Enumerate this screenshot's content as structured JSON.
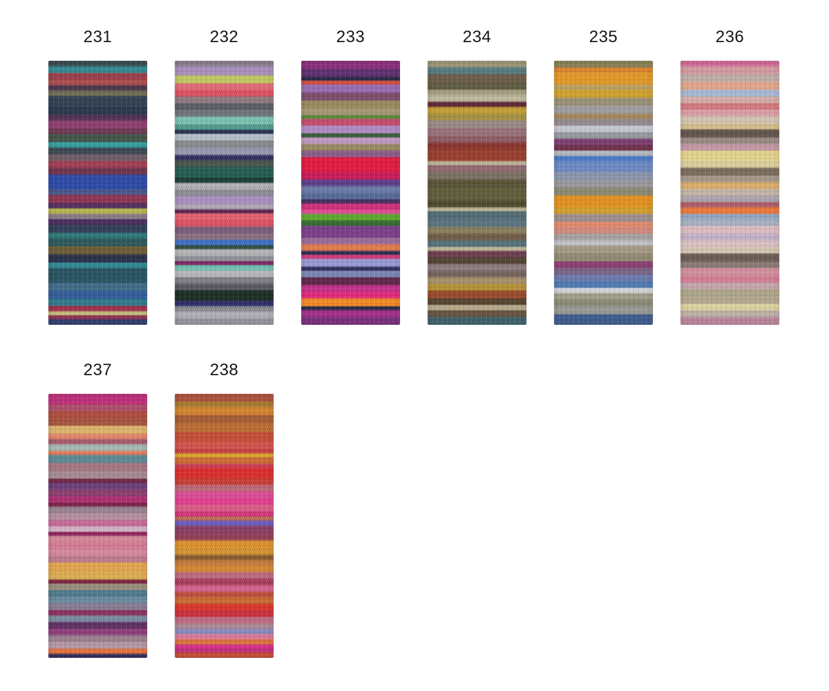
{
  "page": {
    "background": "#ffffff",
    "description_labels": []
  },
  "swatches": [
    {
      "number": "231",
      "stripes": [
        [
          "#35474e",
          2
        ],
        [
          "#2e8a92",
          2.5
        ],
        [
          "#9c3a46",
          2.5
        ],
        [
          "#ae4a4a",
          2
        ],
        [
          "#4a3148",
          2
        ],
        [
          "#6b6b52",
          2
        ],
        [
          "#2c3c50",
          4
        ],
        [
          "#26324a",
          3
        ],
        [
          "#4f2c50",
          2
        ],
        [
          "#8e3a6e",
          3
        ],
        [
          "#6e3350",
          2
        ],
        [
          "#3f4f46",
          3
        ],
        [
          "#2fa0a0",
          2
        ],
        [
          "#35454f",
          2.5
        ],
        [
          "#6d5a64",
          2.5
        ],
        [
          "#a23a50",
          2.5
        ],
        [
          "#6e2e48",
          2.5
        ],
        [
          "#2846a8",
          5.5
        ],
        [
          "#44548a",
          2
        ],
        [
          "#8e3050",
          3
        ],
        [
          "#502a5a",
          2
        ],
        [
          "#b8b84a",
          2
        ],
        [
          "#8a7a8a",
          2
        ],
        [
          "#46275a",
          2
        ],
        [
          "#2c3a55",
          3
        ],
        [
          "#2a7878",
          2
        ],
        [
          "#27565a",
          3
        ],
        [
          "#6b5a32",
          3
        ],
        [
          "#232c46",
          3
        ],
        [
          "#2a8a96",
          2
        ],
        [
          "#23505f",
          5.5
        ],
        [
          "#3c6a8a",
          3
        ],
        [
          "#2c5a9a",
          3
        ],
        [
          "#2a7a8a",
          2.5
        ],
        [
          "#a02a46",
          2
        ],
        [
          "#c8c078",
          1.5
        ],
        [
          "#8a2a50",
          1.5
        ],
        [
          "#2a3a6e",
          2
        ]
      ]
    },
    {
      "number": "232",
      "stripes": [
        [
          "#8a7f8a",
          2
        ],
        [
          "#a98fc0",
          3.5
        ],
        [
          "#c3cc5e",
          3
        ],
        [
          "#e86878",
          2.5
        ],
        [
          "#e14e5e",
          2.5
        ],
        [
          "#8d7a80",
          2.5
        ],
        [
          "#5a5a62",
          2.5
        ],
        [
          "#6e7478",
          2.5
        ],
        [
          "#7cc4b4",
          3
        ],
        [
          "#4e9a8e",
          2
        ],
        [
          "#1e2a4a",
          1.5
        ],
        [
          "#b8c2cc",
          2.5
        ],
        [
          "#8a8a92",
          3
        ],
        [
          "#9a9ab4",
          2.5
        ],
        [
          "#2e2a5e",
          2
        ],
        [
          "#42524a",
          2.5
        ],
        [
          "#1e5a50",
          4
        ],
        [
          "#14382e",
          2
        ],
        [
          "#b4b4b8",
          2.5
        ],
        [
          "#8e8e96",
          2.5
        ],
        [
          "#ab8fc4",
          3
        ],
        [
          "#b0aab8",
          2
        ],
        [
          "#5a2050",
          1.5
        ],
        [
          "#e8606e",
          2.5
        ],
        [
          "#e14e62",
          2.5
        ],
        [
          "#7a5a7a",
          2.5
        ],
        [
          "#8a6e82",
          2.5
        ],
        [
          "#3a6ec8",
          2
        ],
        [
          "#2a4a3a",
          1.5
        ],
        [
          "#b8b8bc",
          2.5
        ],
        [
          "#92929a",
          2
        ],
        [
          "#7a2060",
          1.5
        ],
        [
          "#6ec4b0",
          2
        ],
        [
          "#bcbcc0",
          2.5
        ],
        [
          "#7e7e86",
          2.5
        ],
        [
          "#565660",
          2.5
        ],
        [
          "#15291e",
          4
        ],
        [
          "#2a2a6a",
          2
        ],
        [
          "#8a8a92",
          2
        ],
        [
          "#b2b2ba",
          2.5
        ],
        [
          "#9a96a0",
          2.5
        ]
      ]
    },
    {
      "number": "233",
      "stripes": [
        [
          "#8e2a7a",
          3
        ],
        [
          "#5e2a6e",
          3
        ],
        [
          "#232344",
          1.5
        ],
        [
          "#d84a3a",
          1.5
        ],
        [
          "#9a6ab4",
          3
        ],
        [
          "#7a4a6a",
          3
        ],
        [
          "#9a8a5a",
          3
        ],
        [
          "#a89a72",
          2.5
        ],
        [
          "#5a8a3a",
          1.5
        ],
        [
          "#c84a6a",
          2.5
        ],
        [
          "#b48ac8",
          3
        ],
        [
          "#2e5a2e",
          1.5
        ],
        [
          "#c49ac8",
          2.5
        ],
        [
          "#9a8a62",
          2.5
        ],
        [
          "#8a5a8a",
          2.5
        ],
        [
          "#e8143c",
          5.5
        ],
        [
          "#ce1458",
          3
        ],
        [
          "#5a3a8a",
          2.5
        ],
        [
          "#6a7aaa",
          2.5
        ],
        [
          "#54689a",
          2.5
        ],
        [
          "#3a2a5a",
          1.5
        ],
        [
          "#d42a7a",
          2.5
        ],
        [
          "#e84a9a",
          1.5
        ],
        [
          "#5aaa2a",
          2.5
        ],
        [
          "#2e6a2a",
          2
        ],
        [
          "#7a3a8a",
          4.5
        ],
        [
          "#9a6a9a",
          2.5
        ],
        [
          "#e87a4a",
          2.5
        ],
        [
          "#28284e",
          1.5
        ],
        [
          "#d8347a",
          1.5
        ],
        [
          "#9a9ad8",
          3
        ],
        [
          "#28285a",
          1.5
        ],
        [
          "#7a86b8",
          2.5
        ],
        [
          "#5e2048",
          3
        ],
        [
          "#c82a8a",
          2.5
        ],
        [
          "#e8247a",
          2.5
        ],
        [
          "#f88a1e",
          3
        ],
        [
          "#232348",
          1.5
        ],
        [
          "#a62a8a",
          2.5
        ],
        [
          "#7a2a7a",
          3
        ]
      ]
    },
    {
      "number": "234",
      "stripes": [
        [
          "#a09878",
          2.5
        ],
        [
          "#527a80",
          2.5
        ],
        [
          "#6a5a46",
          3
        ],
        [
          "#5e5a3e",
          3
        ],
        [
          "#a8a080",
          2
        ],
        [
          "#c2bca0",
          2.5
        ],
        [
          "#5e2430",
          2
        ],
        [
          "#c8a030",
          2.5
        ],
        [
          "#a8923e",
          2.5
        ],
        [
          "#9a8a86",
          3
        ],
        [
          "#9a7078",
          3
        ],
        [
          "#8e5a62",
          2.5
        ],
        [
          "#8a3028",
          2.5
        ],
        [
          "#9a3a28",
          4.5
        ],
        [
          "#c2b89a",
          1.5
        ],
        [
          "#92686e",
          2.5
        ],
        [
          "#7a6e62",
          3
        ],
        [
          "#565032",
          3
        ],
        [
          "#5e5a36",
          5
        ],
        [
          "#4a4628",
          2.5
        ],
        [
          "#beb696",
          1.5
        ],
        [
          "#4e6a72",
          3
        ],
        [
          "#5a7280",
          3
        ],
        [
          "#8a7e5a",
          2.5
        ],
        [
          "#6e5a44",
          2.5
        ],
        [
          "#52707a",
          2.5
        ],
        [
          "#c2ba9c",
          1.5
        ],
        [
          "#6a3a4a",
          2.5
        ],
        [
          "#50402e",
          2.5
        ],
        [
          "#8e7a7e",
          2.5
        ],
        [
          "#74625a",
          2.5
        ],
        [
          "#a8906a",
          2.5
        ],
        [
          "#b89232",
          2.5
        ],
        [
          "#9a4626",
          3
        ],
        [
          "#53402a",
          2.5
        ],
        [
          "#bcae8e",
          2
        ],
        [
          "#64503c",
          2.5
        ],
        [
          "#3a606a",
          3
        ]
      ]
    },
    {
      "number": "235",
      "stripes": [
        [
          "#8a8252",
          2.5
        ],
        [
          "#e08428",
          2
        ],
        [
          "#e89a22",
          4.5
        ],
        [
          "#c0a25a",
          2
        ],
        [
          "#d4a428",
          3
        ],
        [
          "#9a9276",
          3
        ],
        [
          "#a0a0a0",
          3
        ],
        [
          "#a8865a",
          2
        ],
        [
          "#968a8e",
          2.5
        ],
        [
          "#c8ccd4",
          2.5
        ],
        [
          "#9a9aa2",
          2.5
        ],
        [
          "#7a3a6e",
          2.5
        ],
        [
          "#6e2a46",
          2
        ],
        [
          "#b8bcc4",
          2
        ],
        [
          "#4a7ac8",
          2
        ],
        [
          "#6a8ac8",
          4
        ],
        [
          "#8a96b0",
          3
        ],
        [
          "#9a9a9e",
          3
        ],
        [
          "#8a8a72",
          3
        ],
        [
          "#e8921a",
          4.5
        ],
        [
          "#d8a028",
          2.5
        ],
        [
          "#a09090",
          3
        ],
        [
          "#e88a6a",
          2
        ],
        [
          "#d88a7e",
          2.5
        ],
        [
          "#a8a4a4",
          2.5
        ],
        [
          "#c4c6cc",
          2
        ],
        [
          "#a89a86",
          3
        ],
        [
          "#928a72",
          3
        ],
        [
          "#8a3a72",
          2.5
        ],
        [
          "#7a6286",
          2.5
        ],
        [
          "#6a7ab0",
          2.5
        ],
        [
          "#4a7ab4",
          2.5
        ],
        [
          "#d8dade",
          2
        ],
        [
          "#a0a08a",
          2.5
        ],
        [
          "#8a8a76",
          2.5
        ],
        [
          "#9a9a96",
          3
        ],
        [
          "#3a5a8e",
          4
        ]
      ]
    },
    {
      "number": "236",
      "stripes": [
        [
          "#d86a9a",
          2
        ],
        [
          "#d89aa2",
          3
        ],
        [
          "#c2b0a8",
          3
        ],
        [
          "#e8a88e",
          3
        ],
        [
          "#a8bcd8",
          2.5
        ],
        [
          "#d8b0ac",
          2.5
        ],
        [
          "#d87a7e",
          2.5
        ],
        [
          "#e0a0a8",
          2.5
        ],
        [
          "#d8c8b4",
          3
        ],
        [
          "#d8c08a",
          2
        ],
        [
          "#5e5248",
          3
        ],
        [
          "#9a8a82",
          2.5
        ],
        [
          "#c89aa8",
          2.5
        ],
        [
          "#e8d88e",
          4
        ],
        [
          "#e0d4a0",
          2.5
        ],
        [
          "#7a6a5a",
          3
        ],
        [
          "#a8988a",
          2.5
        ],
        [
          "#e0b06a",
          2.5
        ],
        [
          "#c8b8a8",
          2.5
        ],
        [
          "#b0a8b0",
          2.5
        ],
        [
          "#b05a6a",
          2
        ],
        [
          "#f07838",
          2.5
        ],
        [
          "#92a8c4",
          2
        ],
        [
          "#a8b4c4",
          2.5
        ],
        [
          "#e0c0c4",
          3
        ],
        [
          "#c8b4cc",
          2.5
        ],
        [
          "#e0c4c8",
          2.5
        ],
        [
          "#d8cab4",
          2.5
        ],
        [
          "#685a50",
          3
        ],
        [
          "#8a7a72",
          2.5
        ],
        [
          "#d890a0",
          3
        ],
        [
          "#d87e96",
          2.5
        ],
        [
          "#c8a8b0",
          2.5
        ],
        [
          "#b0a88a",
          3
        ],
        [
          "#b8a890",
          2.5
        ],
        [
          "#e0d8a0",
          2.5
        ],
        [
          "#c0b4a8",
          2.5
        ],
        [
          "#c088a0",
          3
        ]
      ]
    },
    {
      "number": "237",
      "stripes": [
        [
          "#c22a7a",
          4
        ],
        [
          "#b04a6a",
          2.5
        ],
        [
          "#b04a3a",
          2.5
        ],
        [
          "#a8503a",
          3
        ],
        [
          "#e0b86a",
          3
        ],
        [
          "#e8866a",
          2
        ],
        [
          "#a85a6a",
          2
        ],
        [
          "#a8bcb4",
          2.5
        ],
        [
          "#e87a5a",
          1.5
        ],
        [
          "#5a8a96",
          3
        ],
        [
          "#a87482",
          3
        ],
        [
          "#a88a92",
          3
        ],
        [
          "#6e1e3e",
          1.5
        ],
        [
          "#6a3a7a",
          2.5
        ],
        [
          "#8a3a6e",
          2.5
        ],
        [
          "#b02a72",
          2.5
        ],
        [
          "#781e46",
          1.5
        ],
        [
          "#9a8290",
          2.5
        ],
        [
          "#b890a0",
          2.5
        ],
        [
          "#c86a9a",
          2.5
        ],
        [
          "#d8b8c8",
          2
        ],
        [
          "#8e1e5a",
          1.5
        ],
        [
          "#d8889a",
          2.5
        ],
        [
          "#d87a96",
          2.5
        ],
        [
          "#d88aa0",
          2.5
        ],
        [
          "#c27a90",
          2.5
        ],
        [
          "#e8a84a",
          4
        ],
        [
          "#e0b050",
          2.5
        ],
        [
          "#7a1e3a",
          1.5
        ],
        [
          "#9a8e7a",
          2.5
        ],
        [
          "#4a7a8e",
          2.5
        ],
        [
          "#6a8aa0",
          2.5
        ],
        [
          "#8a7a92",
          2.5
        ],
        [
          "#8a2a5a",
          2
        ],
        [
          "#7a8aa0",
          2.5
        ],
        [
          "#5e2a62",
          2.5
        ],
        [
          "#8e3a7a",
          2.5
        ],
        [
          "#9a8090",
          2.5
        ],
        [
          "#b898a8",
          2.5
        ],
        [
          "#e8703a",
          2
        ],
        [
          "#2a2a5a",
          1.5
        ]
      ]
    },
    {
      "number": "238",
      "stripes": [
        [
          "#b05038",
          3
        ],
        [
          "#a87a2a",
          2
        ],
        [
          "#d8842a",
          3
        ],
        [
          "#a85a30",
          3
        ],
        [
          "#c06a2e",
          3.5
        ],
        [
          "#c84a32",
          3.5
        ],
        [
          "#d85048",
          3
        ],
        [
          "#c83a3a",
          1.5
        ],
        [
          "#e0a828",
          1.5
        ],
        [
          "#d06a30",
          2.5
        ],
        [
          "#d03a52",
          1.5
        ],
        [
          "#e02828",
          4
        ],
        [
          "#cc3a30",
          2.5
        ],
        [
          "#c06878",
          2.5
        ],
        [
          "#e0489a",
          2.5
        ],
        [
          "#e83a90",
          2.5
        ],
        [
          "#e05a88",
          2.5
        ],
        [
          "#d8307a",
          2
        ],
        [
          "#c06a50",
          1.5
        ],
        [
          "#6a5ac0",
          2
        ],
        [
          "#8a3a62",
          3.5
        ],
        [
          "#963a52",
          2
        ],
        [
          "#e09228",
          3.5
        ],
        [
          "#d8942e",
          2
        ],
        [
          "#8a5a28",
          2
        ],
        [
          "#c87a3a",
          2
        ],
        [
          "#d8882e",
          2.5
        ],
        [
          "#c06880",
          2.5
        ],
        [
          "#a83a5a",
          2.5
        ],
        [
          "#d8608a",
          2.5
        ],
        [
          "#c04a38",
          2
        ],
        [
          "#cc6a2e",
          2.5
        ],
        [
          "#e03028",
          2.5
        ],
        [
          "#d02a3a",
          2.5
        ],
        [
          "#c06a80",
          2.5
        ],
        [
          "#b08898",
          2
        ],
        [
          "#8a8ac0",
          2
        ],
        [
          "#e07a98",
          2
        ],
        [
          "#e0703a",
          2
        ],
        [
          "#d8288a",
          1.5
        ],
        [
          "#c22a7a",
          1.5
        ],
        [
          "#cc4a2e",
          2
        ]
      ]
    }
  ]
}
